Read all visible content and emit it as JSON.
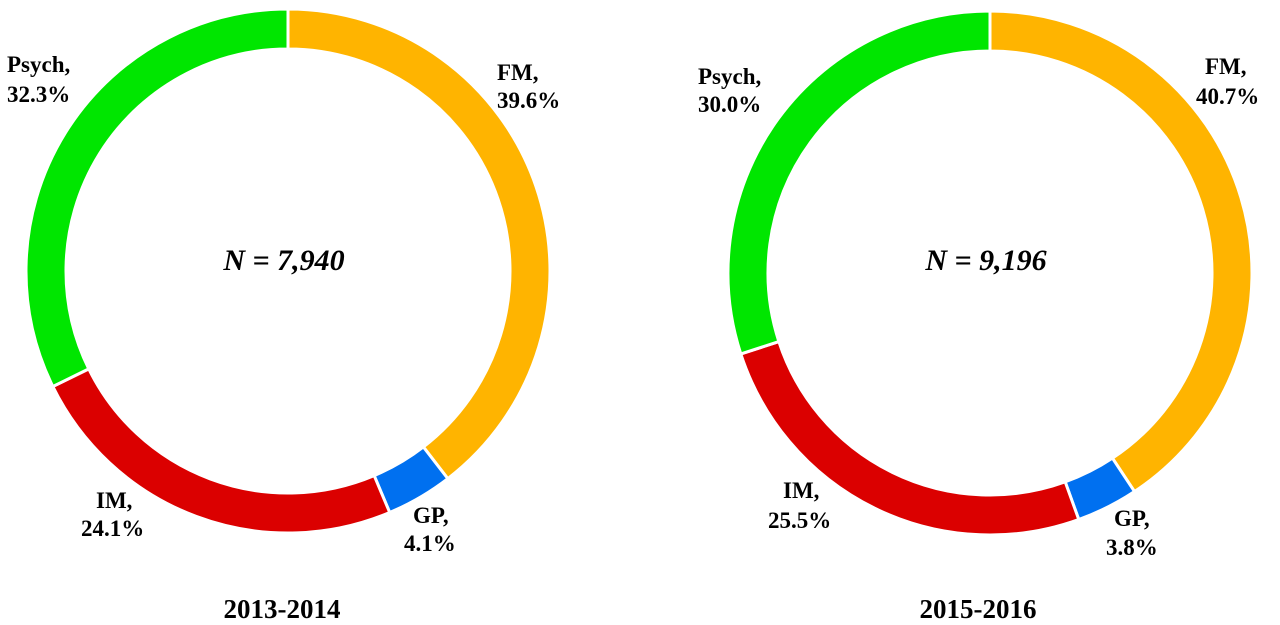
{
  "colors": {
    "FM": "#FFB400",
    "GP": "#0070F0",
    "IM": "#DB0000",
    "Psych": "#00E600"
  },
  "chart_data": [
    {
      "type": "pie",
      "title": "2013-2014",
      "center_text": "N = 7,940",
      "slices": [
        {
          "name": "FM",
          "value": 39.6,
          "label_line1": "FM,",
          "label_line2": "39.6%"
        },
        {
          "name": "GP",
          "value": 4.1,
          "label_line1": "GP,",
          "label_line2": "4.1%"
        },
        {
          "name": "IM",
          "value": 24.1,
          "label_line1": "IM,",
          "label_line2": "24.1%"
        },
        {
          "name": "Psych",
          "value": 32.3,
          "label_line1": "Psych,",
          "label_line2": "32.3%"
        }
      ]
    },
    {
      "type": "pie",
      "title": "2015-2016",
      "center_text": "N = 9,196",
      "slices": [
        {
          "name": "FM",
          "value": 40.7,
          "label_line1": "FM,",
          "label_line2": "40.7%"
        },
        {
          "name": "GP",
          "value": 3.8,
          "label_line1": "GP,",
          "label_line2": "3.8%"
        },
        {
          "name": "IM",
          "value": 25.5,
          "label_line1": "IM,",
          "label_line2": "25.5%"
        },
        {
          "name": "Psych",
          "value": 30.0,
          "label_line1": "Psych,",
          "label_line2": "30.0%"
        }
      ]
    }
  ]
}
